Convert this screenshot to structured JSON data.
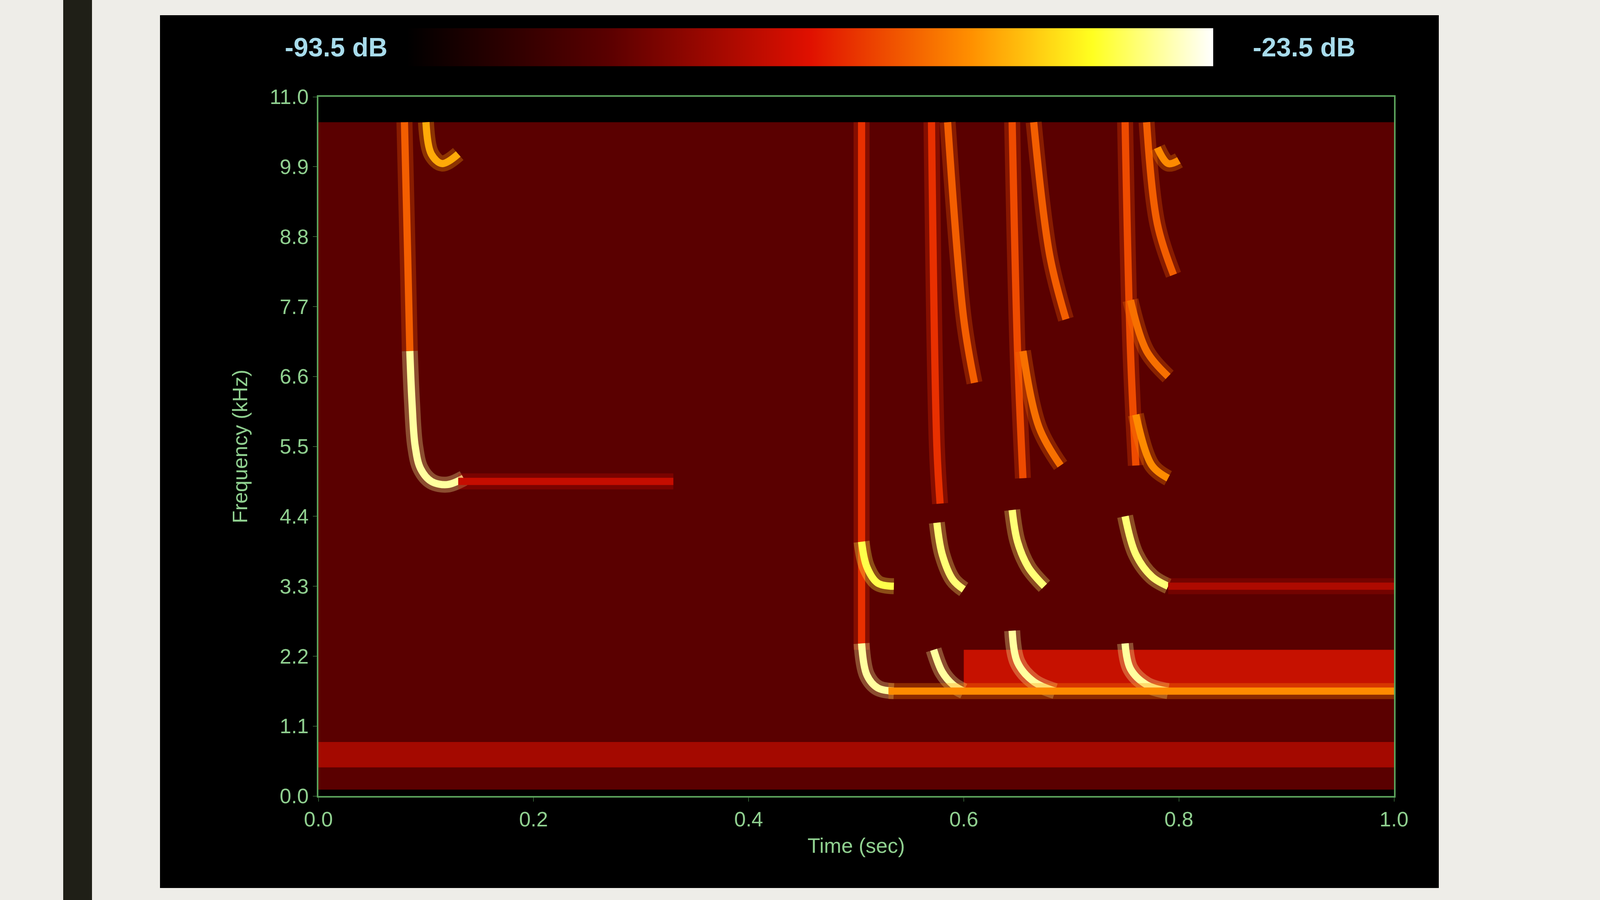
{
  "chart_data": {
    "type": "spectrogram",
    "x_label": "Time (sec)",
    "y_label": "Frequency (kHz)",
    "xlim": [
      0,
      1
    ],
    "xticks": [
      {
        "value": 0,
        "label": "0.0"
      },
      0.2,
      0.4,
      0.6,
      0.8,
      {
        "value": 1,
        "label": "1.0"
      }
    ],
    "ylim": [
      0,
      11
    ],
    "yticks": [
      {
        "value": 0,
        "label": "0.0"
      },
      1.1,
      2.2,
      3.3,
      4.4,
      5.5,
      6.6,
      7.7,
      8.8,
      9.9,
      {
        "value": 11,
        "label": "11.0"
      }
    ],
    "colorbar": {
      "range": [
        -93.5,
        -23.5
      ],
      "ticks": [
        {
          "value": -93.5,
          "label": "-93.5 dB"
        },
        {
          "value": -23.5,
          "label": "-23.5 dB"
        }
      ]
    },
    "noise_floor": {
      "level": -76,
      "x": [
        0,
        1
      ],
      "y": [
        0.1,
        10.6
      ]
    },
    "bands": [
      {
        "level": -64,
        "x": [
          0,
          1
        ],
        "y": [
          0.45,
          0.85
        ]
      },
      {
        "level": -58,
        "x": [
          0.6,
          1
        ],
        "y": [
          1.65,
          2.3
        ]
      }
    ],
    "series": [
      {
        "level": -50,
        "x": [
          0.08,
          0.083,
          0.085
        ],
        "y": [
          10.6,
          8.5,
          7.0
        ]
      },
      {
        "level": -28,
        "x": [
          0.085,
          0.087,
          0.09,
          0.095,
          0.105,
          0.12,
          0.135
        ],
        "y": [
          7.0,
          6.2,
          5.5,
          5.15,
          4.95,
          4.9,
          5.0
        ]
      },
      {
        "level": -42,
        "x": [
          0.1,
          0.105,
          0.115,
          0.13
        ],
        "y": [
          10.6,
          10.1,
          9.95,
          10.1
        ]
      },
      {
        "level": -62,
        "x": [
          0.13,
          0.2,
          0.33
        ],
        "y": [
          4.95,
          4.95,
          4.95
        ]
      },
      {
        "level": -55,
        "x": [
          0.505,
          0.505,
          0.505
        ],
        "y": [
          10.6,
          4.0,
          2.3
        ]
      },
      {
        "level": -32,
        "x": [
          0.505,
          0.51,
          0.52,
          0.535
        ],
        "y": [
          4.0,
          3.6,
          3.35,
          3.3
        ]
      },
      {
        "level": -28,
        "x": [
          0.505,
          0.51,
          0.52,
          0.535
        ],
        "y": [
          2.4,
          1.9,
          1.7,
          1.65
        ]
      },
      {
        "level": -55,
        "x": [
          0.57,
          0.575,
          0.578
        ],
        "y": [
          10.6,
          5.5,
          4.6
        ]
      },
      {
        "level": -30,
        "x": [
          0.575,
          0.58,
          0.59,
          0.6
        ],
        "y": [
          4.3,
          3.8,
          3.4,
          3.25
        ]
      },
      {
        "level": -28,
        "x": [
          0.572,
          0.58,
          0.59,
          0.6
        ],
        "y": [
          2.3,
          1.95,
          1.75,
          1.65
        ]
      },
      {
        "level": -50,
        "x": [
          0.585,
          0.6,
          0.61
        ],
        "y": [
          10.6,
          7.5,
          6.5
        ]
      },
      {
        "level": -52,
        "x": [
          0.645,
          0.65,
          0.655
        ],
        "y": [
          10.6,
          7.0,
          5.0
        ]
      },
      {
        "level": -30,
        "x": [
          0.645,
          0.65,
          0.66,
          0.675
        ],
        "y": [
          4.5,
          4.0,
          3.6,
          3.3
        ]
      },
      {
        "level": -28,
        "x": [
          0.645,
          0.65,
          0.665,
          0.685
        ],
        "y": [
          2.6,
          2.1,
          1.8,
          1.65
        ]
      },
      {
        "level": -50,
        "x": [
          0.665,
          0.68,
          0.695
        ],
        "y": [
          10.6,
          8.5,
          7.5
        ]
      },
      {
        "level": -48,
        "x": [
          0.655,
          0.67,
          0.69
        ],
        "y": [
          7.0,
          5.8,
          5.2
        ]
      },
      {
        "level": -52,
        "x": [
          0.75,
          0.755,
          0.76
        ],
        "y": [
          10.6,
          7.0,
          5.2
        ]
      },
      {
        "level": -30,
        "x": [
          0.75,
          0.76,
          0.775,
          0.79
        ],
        "y": [
          4.4,
          3.8,
          3.45,
          3.3
        ]
      },
      {
        "level": -28,
        "x": [
          0.75,
          0.755,
          0.77,
          0.79
        ],
        "y": [
          2.4,
          2.0,
          1.75,
          1.65
        ]
      },
      {
        "level": -50,
        "x": [
          0.77,
          0.78,
          0.795
        ],
        "y": [
          10.6,
          9.0,
          8.2
        ]
      },
      {
        "level": -48,
        "x": [
          0.755,
          0.77,
          0.79
        ],
        "y": [
          7.8,
          7.0,
          6.6
        ]
      },
      {
        "level": -45,
        "x": [
          0.76,
          0.775,
          0.79
        ],
        "y": [
          6.0,
          5.2,
          5.0
        ]
      },
      {
        "level": -45,
        "x": [
          0.78,
          0.79,
          0.8
        ],
        "y": [
          10.2,
          9.95,
          10.0
        ]
      },
      {
        "level": -45,
        "x": [
          0.53,
          0.75,
          1.0
        ],
        "y": [
          1.65,
          1.65,
          1.65
        ]
      },
      {
        "level": -65,
        "x": [
          0.79,
          0.9,
          1.0
        ],
        "y": [
          3.3,
          3.3,
          3.3
        ]
      }
    ]
  }
}
